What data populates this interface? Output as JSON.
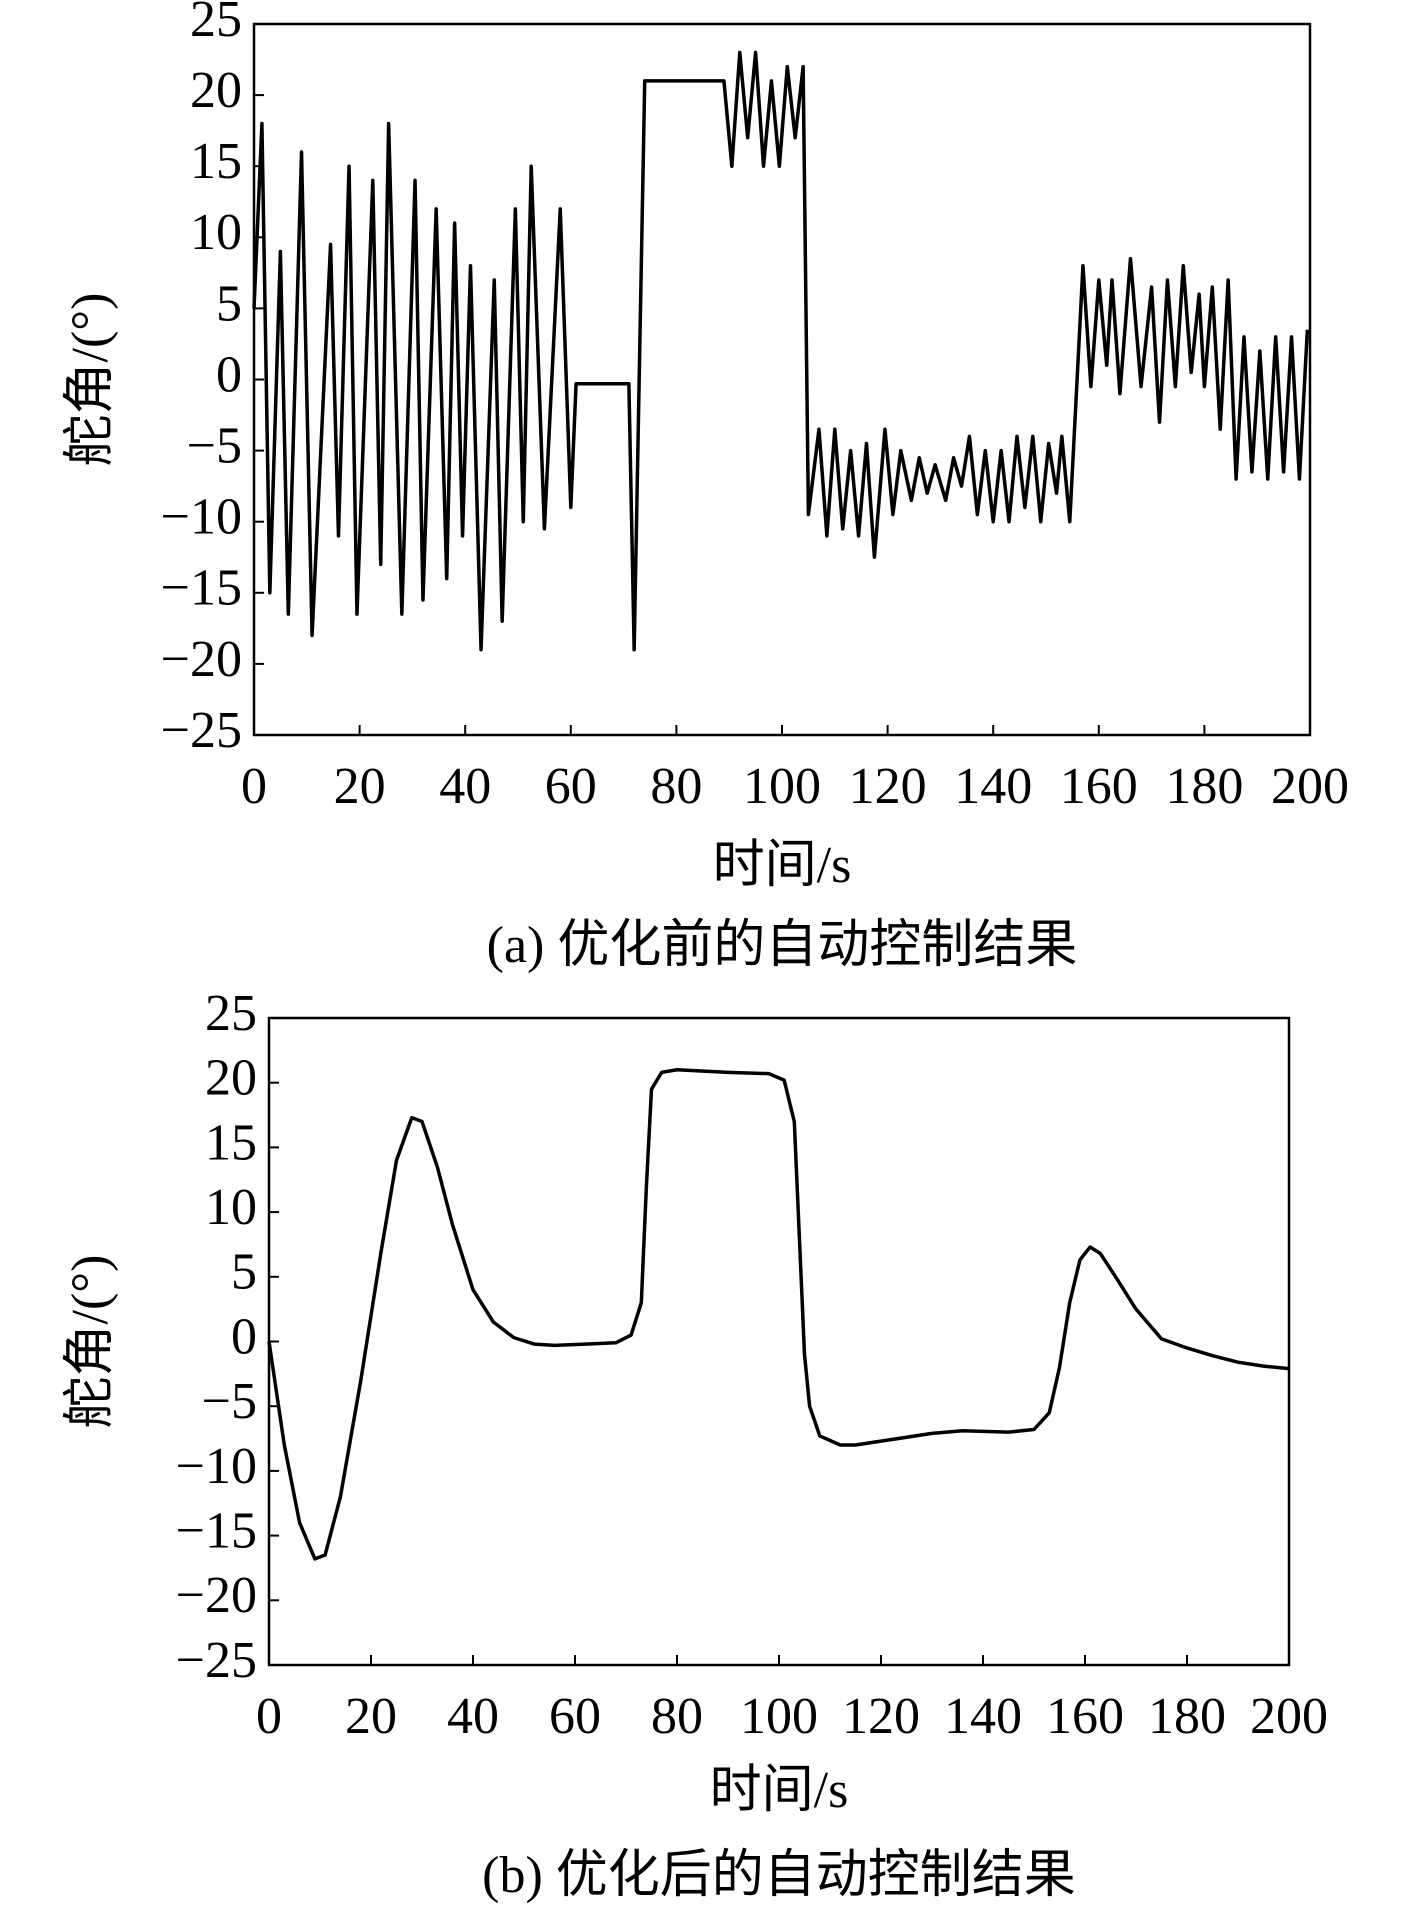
{
  "chart_data": [
    {
      "type": "line",
      "caption": "(a) 优化前的自动控制结果",
      "xlabel": "时间/s",
      "ylabel": "舵角/(°)",
      "color": "#000000",
      "xlim": [
        0,
        200
      ],
      "ylim": [
        -25,
        25
      ],
      "xticks": [
        0,
        20,
        40,
        60,
        80,
        100,
        120,
        140,
        160,
        180,
        200
      ],
      "yticks": [
        {
          "value": -25,
          "label": "−25"
        },
        {
          "value": -20,
          "label": "−20"
        },
        {
          "value": -15,
          "label": "−15"
        },
        {
          "value": -10,
          "label": "−10"
        },
        {
          "value": -5,
          "label": "−5"
        },
        0,
        5,
        10,
        15,
        20,
        25
      ],
      "x": [
        0,
        1.5,
        3,
        5,
        6.5,
        9,
        11,
        14.5,
        16,
        18,
        19.5,
        22.5,
        24,
        25.5,
        28,
        30.5,
        32,
        34.5,
        36.5,
        38,
        39.5,
        41,
        43,
        45.5,
        47,
        49.5,
        51,
        52.5,
        55,
        58,
        60,
        61,
        71,
        72,
        74,
        89,
        90.5,
        92,
        93.5,
        95,
        96.5,
        98,
        99.5,
        101,
        102.5,
        104,
        105,
        107,
        108.5,
        110,
        111.5,
        113,
        114.5,
        116,
        117.5,
        119.5,
        121,
        122.5,
        124.5,
        126,
        127.5,
        129,
        131,
        132.5,
        134,
        135.5,
        137,
        138.5,
        140,
        141.5,
        143,
        144.5,
        146,
        147.5,
        149,
        150.5,
        152,
        153,
        154.5,
        157,
        158.5,
        160,
        161.5,
        162.5,
        164,
        166,
        168,
        170,
        171.5,
        173,
        174.5,
        176,
        177.5,
        179,
        180,
        181.5,
        183,
        184.5,
        186,
        187.5,
        189,
        190.5,
        192,
        193.5,
        195,
        196.5,
        198,
        199.5
      ],
      "values": [
        5,
        18,
        -15,
        9,
        -16.5,
        16,
        -18,
        9.5,
        -11,
        15,
        -16.5,
        14,
        -13,
        18,
        -16.5,
        14,
        -15.5,
        12,
        -14,
        11,
        -11,
        8,
        -19,
        7,
        -17,
        12,
        -10,
        15,
        -10.5,
        12,
        -9,
        -0.3,
        -0.3,
        -19,
        21,
        21,
        15,
        23,
        17,
        23,
        15,
        21,
        15,
        22,
        17,
        22,
        -9.5,
        -3.5,
        -11,
        -3.5,
        -10.5,
        -5,
        -11,
        -4.5,
        -12.5,
        -3.5,
        -9.5,
        -5,
        -8.5,
        -5.5,
        -8,
        -6,
        -8.5,
        -5.5,
        -7.5,
        -4,
        -9.5,
        -5,
        -10,
        -5,
        -10,
        -4,
        -9,
        -4,
        -10,
        -4.5,
        -8,
        -4,
        -10,
        8,
        -0.5,
        7,
        1,
        7,
        -1,
        8.5,
        -0.5,
        6.5,
        -3,
        7,
        -0.5,
        8,
        0.5,
        6,
        -0.5,
        6.5,
        -3.5,
        7,
        -7,
        3,
        -6.5,
        2,
        -7,
        3,
        -6.5,
        3,
        -7,
        3.5
      ]
    },
    {
      "type": "line",
      "caption": "(b) 优化后的自动控制结果",
      "xlabel": "时间/s",
      "ylabel": "舵角/(°)",
      "color": "#000000",
      "xlim": [
        0,
        200
      ],
      "ylim": [
        -25,
        25
      ],
      "xticks": [
        0,
        20,
        40,
        60,
        80,
        100,
        120,
        140,
        160,
        180,
        200
      ],
      "yticks": [
        {
          "value": -25,
          "label": "−25"
        },
        {
          "value": -20,
          "label": "−20"
        },
        {
          "value": -15,
          "label": "−15"
        },
        {
          "value": -10,
          "label": "−10"
        },
        {
          "value": -5,
          "label": "−5"
        },
        0,
        5,
        10,
        15,
        20,
        25
      ],
      "x": [
        0,
        3,
        6,
        9,
        11,
        14,
        18,
        22,
        25,
        28,
        30,
        33,
        36,
        40,
        44,
        48,
        52,
        56,
        62,
        68,
        71,
        73,
        74,
        75,
        77,
        80,
        90,
        98,
        101,
        103,
        104,
        105,
        106,
        108,
        112,
        115,
        120,
        130,
        136,
        145,
        150,
        153,
        155,
        157,
        159,
        161,
        163,
        166,
        170,
        175,
        180,
        185,
        190,
        195,
        200
      ],
      "values": [
        0,
        -8,
        -14,
        -16.8,
        -16.5,
        -12,
        -3,
        7,
        14,
        17.3,
        17,
        13.5,
        9,
        4,
        1.5,
        0.3,
        -0.2,
        -0.3,
        -0.2,
        -0.1,
        0.5,
        3,
        12,
        19.5,
        20.8,
        21,
        20.8,
        20.7,
        20.2,
        17,
        8,
        -1,
        -5,
        -7.3,
        -8,
        -8,
        -7.7,
        -7.1,
        -6.9,
        -7,
        -6.8,
        -5.5,
        -2,
        3,
        6.3,
        7.3,
        6.8,
        5,
        2.5,
        0.2,
        -0.5,
        -1.1,
        -1.6,
        -1.9,
        -2.1
      ]
    }
  ]
}
